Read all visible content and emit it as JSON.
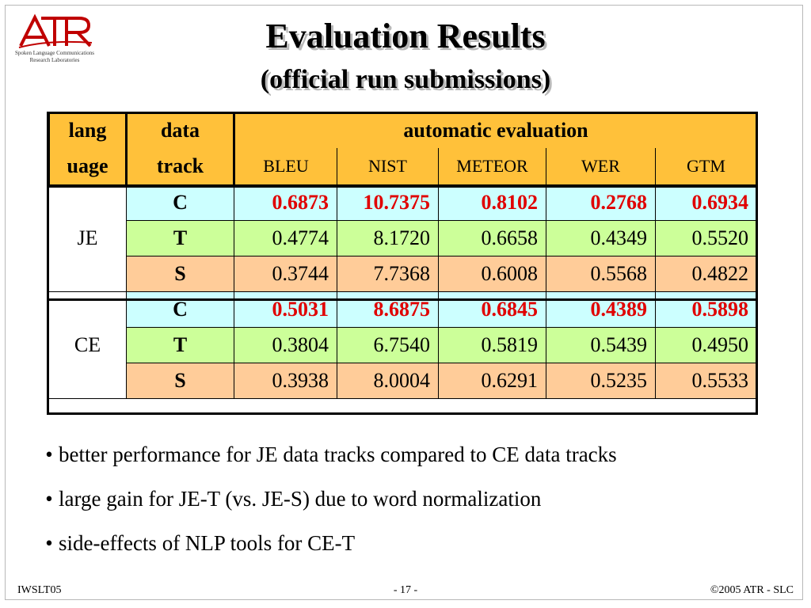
{
  "logo": {
    "line1": "Spoken Language Communications",
    "line2": "Research Laboratories",
    "brand": "ATR"
  },
  "title": "Evaluation Results",
  "subtitle": "(official run submissions)",
  "table": {
    "header": {
      "language_top": "lang",
      "language_bottom": "uage",
      "track_top": "data",
      "track_bottom": "track",
      "group": "automatic evaluation",
      "metrics": [
        "BLEU",
        "NIST",
        "METEOR",
        "WER",
        "GTM"
      ]
    },
    "groups": [
      {
        "language": "JE",
        "rows": [
          {
            "track": "C",
            "values": [
              "0.6873",
              "10.7375",
              "0.8102",
              "0.2768",
              "0.6934"
            ],
            "highlight": true
          },
          {
            "track": "T",
            "values": [
              "0.4774",
              "8.1720",
              "0.6658",
              "0.4349",
              "0.5520"
            ],
            "highlight": false
          },
          {
            "track": "S",
            "values": [
              "0.3744",
              "7.7368",
              "0.6008",
              "0.5568",
              "0.4822"
            ],
            "highlight": false
          }
        ]
      },
      {
        "language": "CE",
        "rows": [
          {
            "track": "C",
            "values": [
              "0.5031",
              "8.6875",
              "0.6845",
              "0.4389",
              "0.5898"
            ],
            "highlight": true
          },
          {
            "track": "T",
            "values": [
              "0.3804",
              "6.7540",
              "0.5819",
              "0.5439",
              "0.4950"
            ],
            "highlight": false
          },
          {
            "track": "S",
            "values": [
              "0.3938",
              "8.0004",
              "0.6291",
              "0.5235",
              "0.5533"
            ],
            "highlight": false
          }
        ]
      }
    ],
    "colors": {
      "header": "#ffc13a",
      "row_C": "#ccffff",
      "row_T": "#ccff99",
      "row_S": "#ffcc99",
      "highlight_text": "#e00000"
    }
  },
  "bullets": [
    "better performance for JE data tracks compared to CE data tracks",
    "large gain for JE-T (vs. JE-S) due to word normalization",
    "side-effects of NLP tools for CE-T"
  ],
  "bullet_symbol": "•",
  "footer": {
    "left": "IWSLT05",
    "center": "- 17 -",
    "right": "©2005 ATR - SLC"
  },
  "logo_color": "#c00000"
}
